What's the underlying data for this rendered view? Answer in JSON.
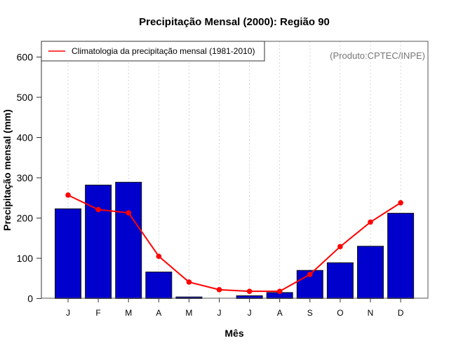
{
  "chart_data": {
    "type": "bar",
    "title": "Precipitação Mensal (2000): Região 90",
    "xlabel": "Mês",
    "ylabel": "Precipitação mensal (mm)",
    "ylim": [
      0,
      630
    ],
    "yticks": [
      0,
      100,
      200,
      300,
      400,
      500,
      600
    ],
    "categories": [
      "J",
      "F",
      "M",
      "A",
      "M",
      "J",
      "J",
      "A",
      "S",
      "O",
      "N",
      "D"
    ],
    "grid": "vertical dotted at months",
    "legend_position": "top-left",
    "credit": "(Produto:CPTEC/INPE)",
    "series": [
      {
        "name": "Precipitação mensal (2000)",
        "type": "bar",
        "color": "#0000CD",
        "values": [
          223,
          282,
          289,
          66,
          4,
          0,
          7,
          15,
          70,
          89,
          130,
          212
        ]
      },
      {
        "name": "Climatologia da precipitação mensal (1981-2010)",
        "type": "line",
        "color": "#FF0000",
        "values": [
          257,
          221,
          213,
          105,
          41,
          22,
          18,
          18,
          60,
          129,
          190,
          238
        ]
      }
    ]
  }
}
